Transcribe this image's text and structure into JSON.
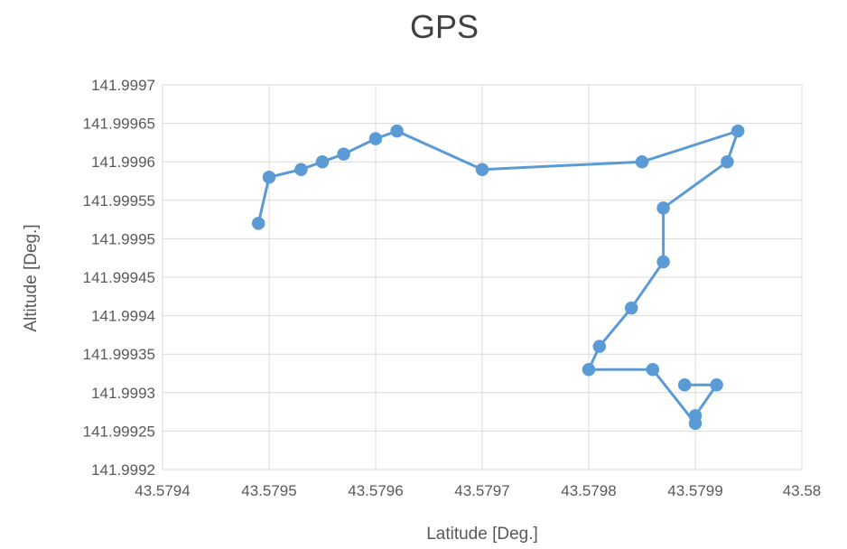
{
  "chart_data": {
    "type": "scatter",
    "title": "GPS",
    "xlabel": "Latitude [Deg.]",
    "ylabel": "Altitude [Deg.]",
    "xlim": [
      43.5794,
      43.58
    ],
    "ylim": [
      141.9992,
      141.9997
    ],
    "x_ticks": [
      43.5794,
      43.5795,
      43.5796,
      43.5797,
      43.5798,
      43.5799,
      43.58
    ],
    "x_tick_labels": [
      "43.5794",
      "43.5795",
      "43.5796",
      "43.5797",
      "43.5798",
      "43.5799",
      "43.58"
    ],
    "y_ticks": [
      141.9992,
      141.99925,
      141.9993,
      141.99935,
      141.9994,
      141.99945,
      141.9995,
      141.99955,
      141.9996,
      141.99965,
      141.9997
    ],
    "y_tick_labels": [
      "141.9992",
      "141.99925",
      "141.9993",
      "141.99935",
      "141.9994",
      "141.99945",
      "141.9995",
      "141.99955",
      "141.9996",
      "141.99965",
      "141.9997"
    ],
    "grid": true,
    "legend": "none",
    "series": [
      {
        "color": "#5b9bd5",
        "points": [
          [
            43.57949,
            141.99952
          ],
          [
            43.5795,
            141.99958
          ],
          [
            43.57953,
            141.99959
          ],
          [
            43.57955,
            141.9996
          ],
          [
            43.57957,
            141.99961
          ],
          [
            43.5796,
            141.99963
          ],
          [
            43.57962,
            141.99964
          ],
          [
            43.5797,
            141.99959
          ],
          [
            43.57985,
            141.9996
          ],
          [
            43.57994,
            141.99964
          ],
          [
            43.57993,
            141.9996
          ],
          [
            43.57987,
            141.99954
          ],
          [
            43.57987,
            141.99947
          ],
          [
            43.57984,
            141.99941
          ],
          [
            43.57981,
            141.99936
          ],
          [
            43.5798,
            141.99933
          ],
          [
            43.57986,
            141.99933
          ],
          [
            43.5799,
            141.99926
          ],
          [
            43.5799,
            141.99927
          ],
          [
            43.57992,
            141.99931
          ],
          [
            43.57989,
            141.99931
          ]
        ]
      }
    ]
  }
}
